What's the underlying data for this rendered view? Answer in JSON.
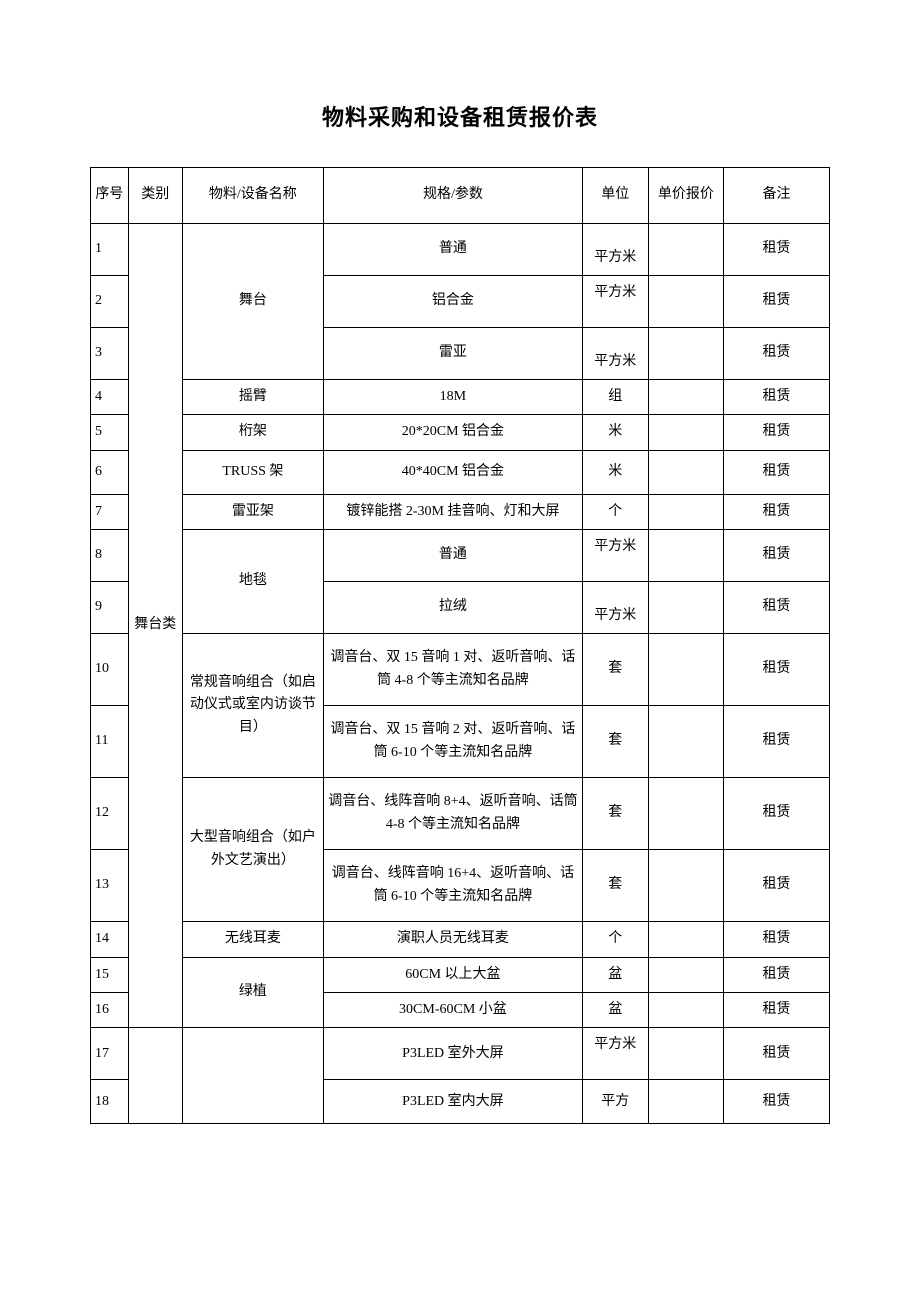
{
  "title": "物料采购和设备租赁报价表",
  "headers": {
    "seq": "序号",
    "category": "类别",
    "name": "物料/设备名称",
    "spec": "规格/参数",
    "unit": "单位",
    "price": "单价报价",
    "note": "备注"
  },
  "category_stage": "舞台类",
  "rows": {
    "r1": {
      "seq": "1",
      "name": "舞台",
      "spec": "普通",
      "unit": "平方米",
      "note": "租赁"
    },
    "r2": {
      "seq": "2",
      "spec": "铝合金",
      "unit": "平方米",
      "note": "租赁"
    },
    "r3": {
      "seq": "3",
      "spec": "雷亚",
      "unit": "平方米",
      "note": "租赁"
    },
    "r4": {
      "seq": "4",
      "name": "摇臂",
      "spec": "18M",
      "unit": "组",
      "note": "租赁"
    },
    "r5": {
      "seq": "5",
      "name": "桁架",
      "spec": "20*20CM 铝合金",
      "unit": "米",
      "note": "租赁"
    },
    "r6": {
      "seq": "6",
      "name": "TRUSS 架",
      "spec": "40*40CM 铝合金",
      "unit": "米",
      "note": "租赁"
    },
    "r7": {
      "seq": "7",
      "name": "雷亚架",
      "spec": "镀锌能搭 2-30M 挂音响、灯和大屏",
      "unit": "个",
      "note": "租赁"
    },
    "r8": {
      "seq": "8",
      "name": "地毯",
      "spec": "普通",
      "unit": "平方米",
      "note": "租赁"
    },
    "r9": {
      "seq": "9",
      "spec": "拉绒",
      "unit": "平方米",
      "note": "租赁"
    },
    "r10": {
      "seq": "10",
      "name": "常规音响组合（如启动仪式或室内访谈节目）",
      "spec": "调音台、双 15 音响 1 对、返听音响、话筒 4-8 个等主流知名品牌",
      "unit": "套",
      "note": "租赁"
    },
    "r11": {
      "seq": "11",
      "spec": "调音台、双 15 音响 2 对、返听音响、话筒 6-10 个等主流知名品牌",
      "unit": "套",
      "note": "租赁"
    },
    "r12": {
      "seq": "12",
      "name": "大型音响组合（如户外文艺演出）",
      "spec": "调音台、线阵音响 8+4、返听音响、话筒 4-8 个等主流知名品牌",
      "unit": "套",
      "note": "租赁"
    },
    "r13": {
      "seq": "13",
      "spec": "调音台、线阵音响 16+4、返听音响、话筒 6-10 个等主流知名品牌",
      "unit": "套",
      "note": "租赁"
    },
    "r14": {
      "seq": "14",
      "name": "无线耳麦",
      "spec": "演职人员无线耳麦",
      "unit": "个",
      "note": "租赁"
    },
    "r15": {
      "seq": "15",
      "name": "绿植",
      "spec": "60CM 以上大盆",
      "unit": "盆",
      "note": "租赁"
    },
    "r16": {
      "seq": "16",
      "spec": "30CM-60CM 小盆",
      "unit": "盆",
      "note": "租赁"
    },
    "r17": {
      "seq": "17",
      "spec": "P3LED 室外大屏",
      "unit": "平方米",
      "note": "租赁"
    },
    "r18": {
      "seq": "18",
      "spec": "P3LED 室内大屏",
      "unit": "平方",
      "note": "租赁"
    }
  }
}
